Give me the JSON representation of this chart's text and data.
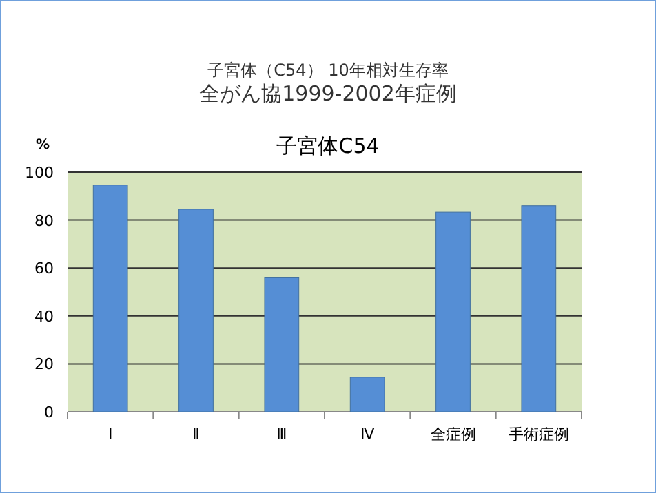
{
  "chart_data": {
    "type": "bar",
    "title": "子宮体（C54） 10年相対生存率",
    "subtitle": "全がん協1999-2002年症例",
    "annotations": [
      "子宮体C54"
    ],
    "ylabel": "%",
    "categories": [
      "Ⅰ",
      "Ⅱ",
      "Ⅲ",
      "Ⅳ",
      "全症例",
      "手術症例"
    ],
    "series": [
      {
        "color": "#558ed5",
        "values": [
          94.6,
          84.5,
          55.9,
          14.4,
          83.3,
          86.0
        ]
      }
    ],
    "ylim": [
      0,
      100
    ],
    "yticks": [
      0,
      20,
      40,
      60,
      80,
      100
    ],
    "grid": "y"
  }
}
